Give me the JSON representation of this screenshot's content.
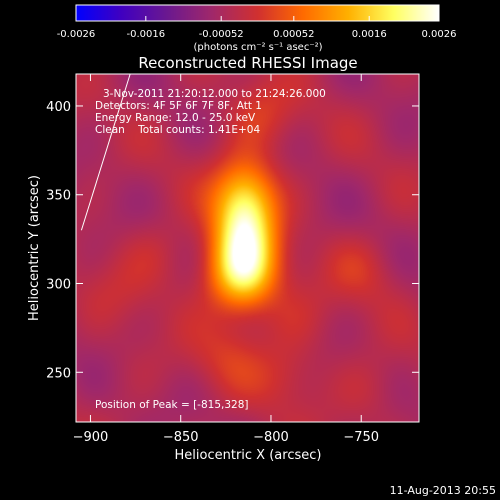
{
  "colorbar": {
    "ticks": [
      "-0.0026",
      "-0.0016",
      "-0.00052",
      "0.00052",
      "0.0016",
      "0.0026"
    ],
    "units": "(photons cm⁻² s⁻¹ asec⁻²)",
    "range": [
      -0.0026,
      0.0026
    ],
    "stops": [
      "#0000ff",
      "#4000c0",
      "#6a1890",
      "#a0286a",
      "#d03030",
      "#ff6a00",
      "#ffb000",
      "#ffff60",
      "#ffffff"
    ]
  },
  "chart_data": {
    "type": "heatmap",
    "title": "Reconstructed RHESSI Image",
    "xlabel": "Heliocentric X (arcsec)",
    "ylabel": "Heliocentric Y (arcsec)",
    "xlim": [
      -908,
      -718
    ],
    "ylim": [
      222,
      418
    ],
    "xticks": [
      -900,
      -850,
      -800,
      -750
    ],
    "xtick_labels": [
      "−900",
      "−850",
      "−800",
      "−750"
    ],
    "yticks": [
      250,
      300,
      350,
      400
    ],
    "ytick_labels": [
      "250",
      "300",
      "350",
      "400"
    ],
    "sources": [
      {
        "x": -815,
        "y": 328,
        "value": 0.0026
      },
      {
        "x": -818,
        "y": 305,
        "value": 0.0012
      },
      {
        "x": -813,
        "y": 352,
        "value": 0.0006
      },
      {
        "x": -806,
        "y": 395,
        "value": 0.0005
      },
      {
        "x": -863,
        "y": 318,
        "value": 0.0003
      },
      {
        "x": -825,
        "y": 258,
        "value": 0.0004
      },
      {
        "x": -790,
        "y": 280,
        "value": 0.0003
      },
      {
        "x": -790,
        "y": 250,
        "value": 0.0004
      },
      {
        "x": -750,
        "y": 308,
        "value": 0.0004
      },
      {
        "x": -745,
        "y": 240,
        "value": 0.0003
      },
      {
        "x": -885,
        "y": 296,
        "value": 0.0002
      },
      {
        "x": -875,
        "y": 255,
        "value": 0.0001
      }
    ],
    "limb_line": [
      [
        -905,
        330
      ],
      [
        -878,
        418
      ]
    ],
    "annotations": {
      "time_range": "3-Nov-2011 21:20:12.000 to 21:24:26.000",
      "detectors": "Detectors: 4F 5F 6F 7F 8F, Att 1",
      "energy": "Energy Range: 12.0 - 25.0 keV",
      "clean": "Clean    Total counts: 1.41E+04",
      "peak": "Position of Peak = [-815,328]"
    }
  },
  "footer": {
    "timestamp": "11-Aug-2013 20:55"
  }
}
